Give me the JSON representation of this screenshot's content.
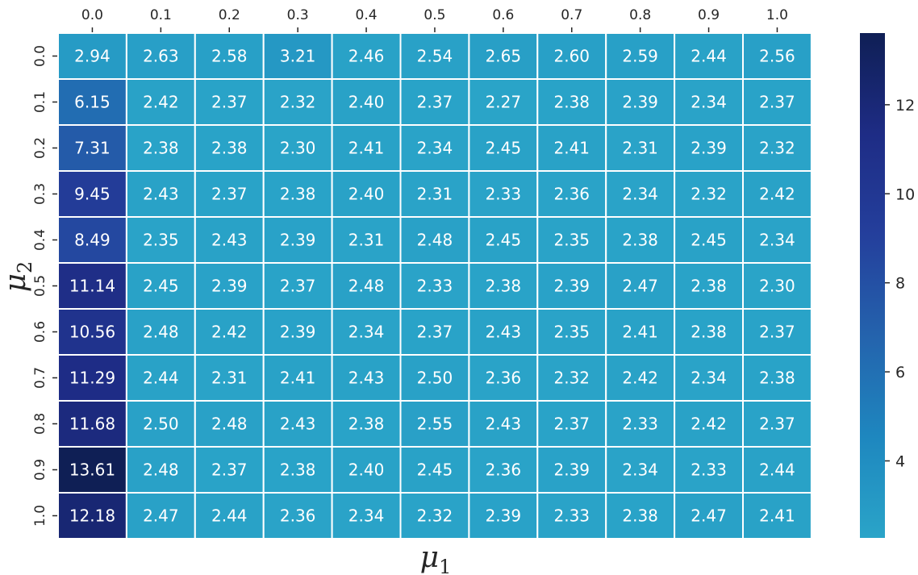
{
  "chart_data": {
    "type": "heatmap",
    "title": "",
    "xlabel": "μ",
    "xlabel_sub": "1",
    "ylabel": "μ",
    "ylabel_sub": "2",
    "x_categories": [
      "0.0",
      "0.1",
      "0.2",
      "0.3",
      "0.4",
      "0.5",
      "0.6",
      "0.7",
      "0.8",
      "0.9",
      "1.0"
    ],
    "y_categories": [
      "0.0",
      "0.1",
      "0.2",
      "0.3",
      "0.4",
      "0.5",
      "0.6",
      "0.7",
      "0.8",
      "0.9",
      "1.0"
    ],
    "x_axis_position": "top",
    "values": [
      [
        2.94,
        2.63,
        2.58,
        3.21,
        2.46,
        2.54,
        2.65,
        2.6,
        2.59,
        2.44,
        2.56
      ],
      [
        6.15,
        2.42,
        2.37,
        2.32,
        2.4,
        2.37,
        2.27,
        2.38,
        2.39,
        2.34,
        2.37
      ],
      [
        7.31,
        2.38,
        2.38,
        2.3,
        2.41,
        2.34,
        2.45,
        2.41,
        2.31,
        2.39,
        2.32
      ],
      [
        9.45,
        2.43,
        2.37,
        2.38,
        2.4,
        2.31,
        2.33,
        2.36,
        2.34,
        2.32,
        2.42
      ],
      [
        8.49,
        2.35,
        2.43,
        2.39,
        2.31,
        2.48,
        2.45,
        2.35,
        2.38,
        2.45,
        2.34
      ],
      [
        11.14,
        2.45,
        2.39,
        2.37,
        2.48,
        2.33,
        2.38,
        2.39,
        2.47,
        2.38,
        2.3
      ],
      [
        10.56,
        2.48,
        2.42,
        2.39,
        2.34,
        2.37,
        2.43,
        2.35,
        2.41,
        2.38,
        2.37
      ],
      [
        11.29,
        2.44,
        2.31,
        2.41,
        2.43,
        2.5,
        2.36,
        2.32,
        2.42,
        2.34,
        2.38
      ],
      [
        11.68,
        2.5,
        2.48,
        2.43,
        2.38,
        2.55,
        2.43,
        2.37,
        2.33,
        2.42,
        2.37
      ],
      [
        13.61,
        2.48,
        2.37,
        2.38,
        2.4,
        2.45,
        2.36,
        2.39,
        2.34,
        2.33,
        2.44
      ],
      [
        12.18,
        2.47,
        2.44,
        2.36,
        2.34,
        2.32,
        2.39,
        2.33,
        2.38,
        2.47,
        2.41
      ]
    ],
    "colormap": "YlGnBu",
    "color_stops": [
      "#2aa4c8",
      "#1e87bf",
      "#2463ad",
      "#243f9c",
      "#1e2c85",
      "#0f1f55"
    ],
    "colorbar": {
      "range": [
        2.27,
        13.61
      ],
      "ticks": [
        4,
        6,
        8,
        10,
        12
      ],
      "tick_labels": [
        "4",
        "6",
        "8",
        "10",
        "12"
      ]
    },
    "cell_border_color": "#ffffff",
    "text_color": "#ffffff",
    "grid": false
  }
}
